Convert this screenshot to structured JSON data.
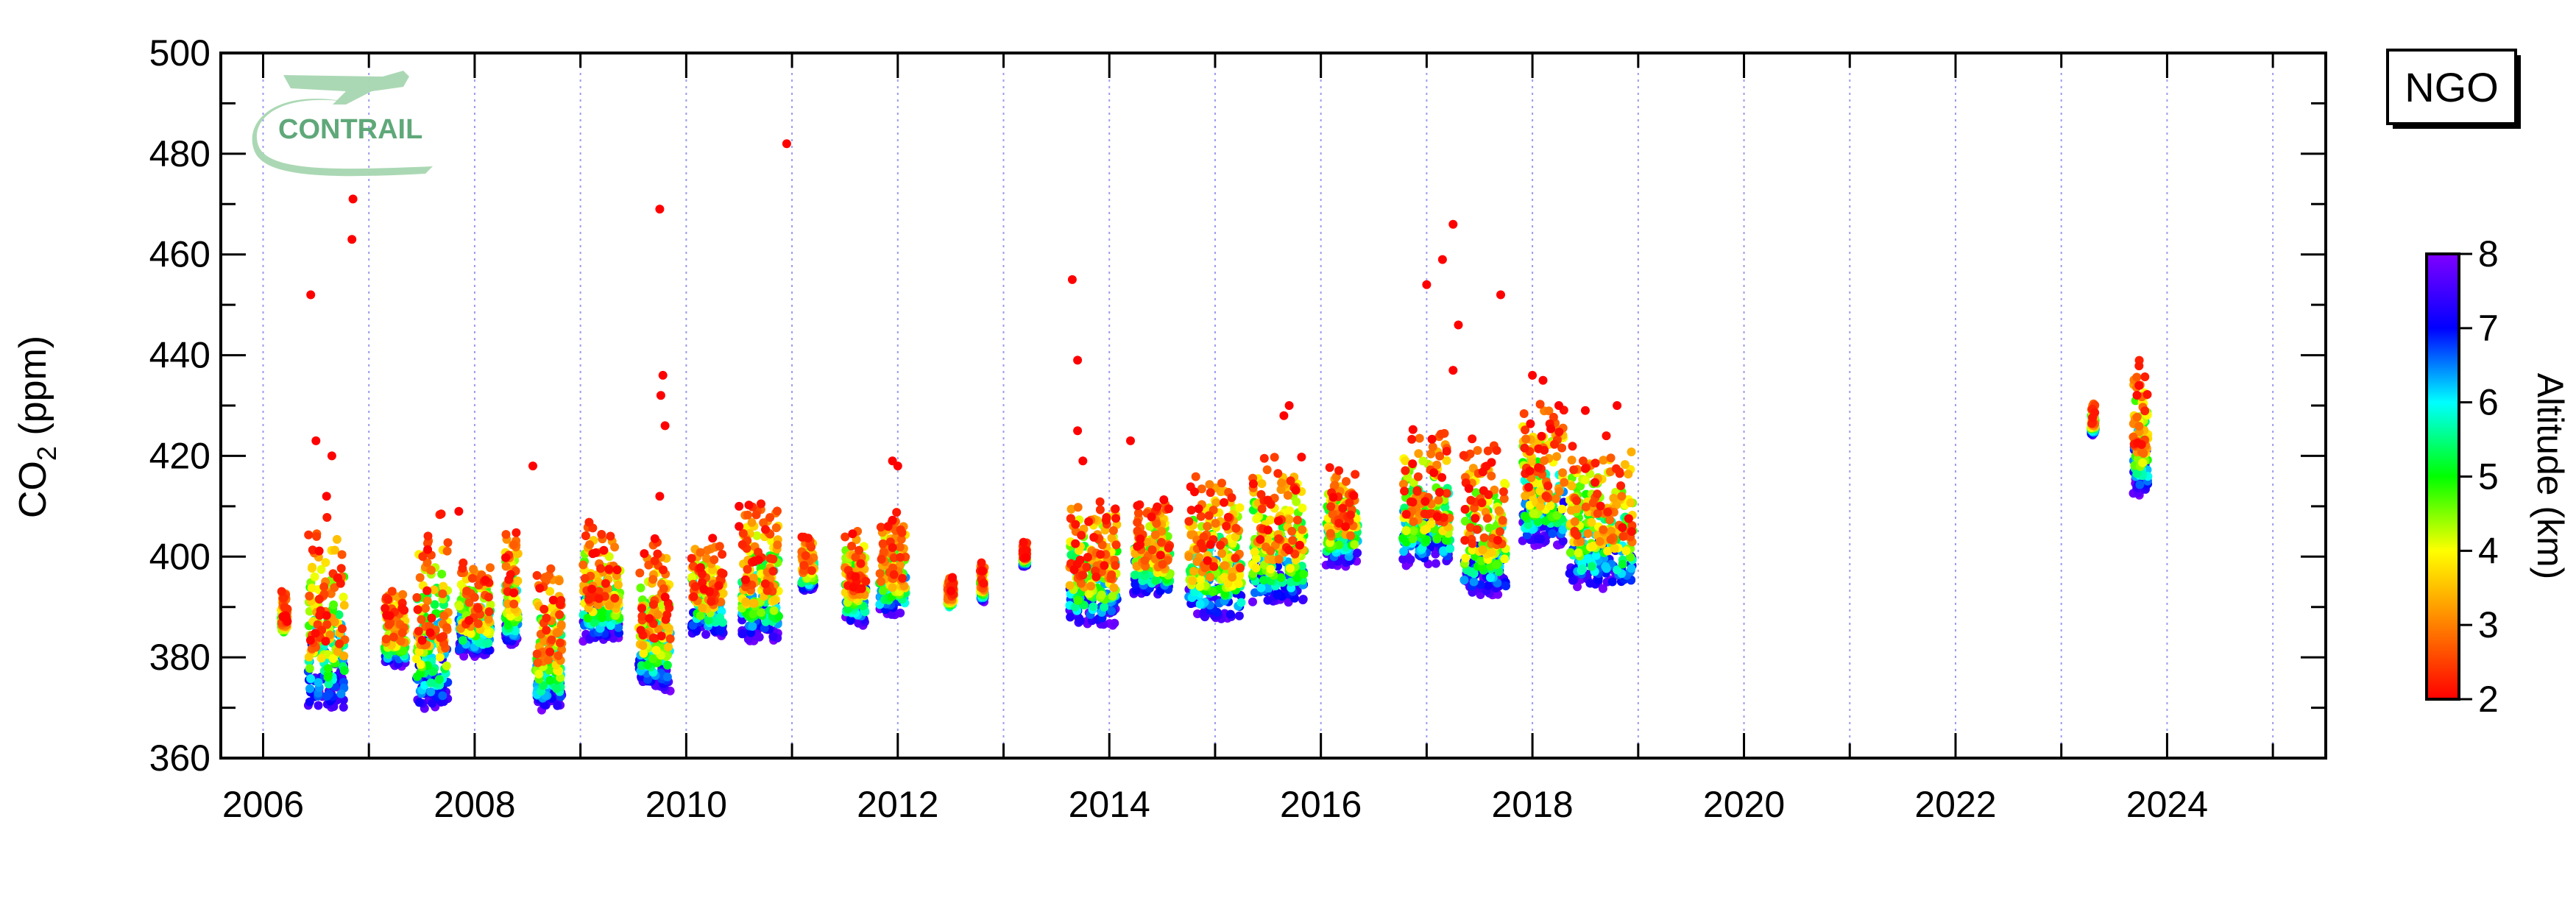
{
  "chart_data": {
    "type": "scatter",
    "title": "",
    "station": "NGO",
    "logo_text": "CONTRAIL",
    "ylabel_main": "CO",
    "ylabel_sub": "2",
    "ylabel_unit": " (ppm)",
    "xlabel": "",
    "xlim": [
      2005.6,
      2025.5
    ],
    "ylim": [
      360,
      500
    ],
    "x_ticks": [
      2006,
      2008,
      2010,
      2012,
      2014,
      2016,
      2018,
      2020,
      2022,
      2024
    ],
    "y_ticks": [
      360,
      380,
      400,
      420,
      440,
      460,
      480,
      500
    ],
    "vertical_gridlines_dotted_every": 1,
    "colorbar": {
      "label": "Altitude (km)",
      "min": 2,
      "max": 8,
      "ticks": [
        2,
        3,
        4,
        5,
        6,
        7,
        8
      ],
      "colors": [
        "#ff0000",
        "#ff8000",
        "#ffff00",
        "#00ff00",
        "#00ffff",
        "#0000ff",
        "#8000ff"
      ]
    },
    "clusters": [
      {
        "x": 2006.2,
        "w": 0.06,
        "low": 383,
        "high": 394,
        "alt_min": 2,
        "alt_max": 5
      },
      {
        "x": 2006.6,
        "w": 0.35,
        "low": 369,
        "high": 410,
        "alt_min": 2,
        "alt_max": 8
      },
      {
        "x": 2007.25,
        "w": 0.2,
        "low": 378,
        "high": 395,
        "alt_min": 2,
        "alt_max": 8
      },
      {
        "x": 2007.6,
        "w": 0.3,
        "low": 369,
        "high": 410,
        "alt_min": 2,
        "alt_max": 8
      },
      {
        "x": 2008.0,
        "w": 0.3,
        "low": 380,
        "high": 400,
        "alt_min": 2,
        "alt_max": 8
      },
      {
        "x": 2008.35,
        "w": 0.12,
        "low": 382,
        "high": 407,
        "alt_min": 2,
        "alt_max": 8
      },
      {
        "x": 2008.7,
        "w": 0.25,
        "low": 369,
        "high": 400,
        "alt_min": 2,
        "alt_max": 8
      },
      {
        "x": 2009.2,
        "w": 0.35,
        "low": 383,
        "high": 408,
        "alt_min": 2,
        "alt_max": 8
      },
      {
        "x": 2009.7,
        "w": 0.3,
        "low": 373,
        "high": 405,
        "alt_min": 2,
        "alt_max": 8
      },
      {
        "x": 2010.2,
        "w": 0.3,
        "low": 384,
        "high": 405,
        "alt_min": 2,
        "alt_max": 8
      },
      {
        "x": 2010.7,
        "w": 0.35,
        "low": 383,
        "high": 412,
        "alt_min": 2,
        "alt_max": 8
      },
      {
        "x": 2011.15,
        "w": 0.12,
        "low": 393,
        "high": 405,
        "alt_min": 2,
        "alt_max": 8
      },
      {
        "x": 2011.6,
        "w": 0.2,
        "low": 386,
        "high": 408,
        "alt_min": 2,
        "alt_max": 8
      },
      {
        "x": 2011.95,
        "w": 0.25,
        "low": 388,
        "high": 410,
        "alt_min": 2,
        "alt_max": 8
      },
      {
        "x": 2012.5,
        "w": 0.06,
        "low": 389,
        "high": 397,
        "alt_min": 2,
        "alt_max": 6
      },
      {
        "x": 2012.8,
        "w": 0.04,
        "low": 391,
        "high": 399,
        "alt_min": 2,
        "alt_max": 8
      },
      {
        "x": 2013.2,
        "w": 0.04,
        "low": 398,
        "high": 403,
        "alt_min": 2,
        "alt_max": 8
      },
      {
        "x": 2013.85,
        "w": 0.45,
        "low": 386,
        "high": 414,
        "alt_min": 2,
        "alt_max": 8
      },
      {
        "x": 2014.4,
        "w": 0.35,
        "low": 392,
        "high": 412,
        "alt_min": 2,
        "alt_max": 8
      },
      {
        "x": 2015.0,
        "w": 0.5,
        "low": 387,
        "high": 418,
        "alt_min": 2,
        "alt_max": 8
      },
      {
        "x": 2015.6,
        "w": 0.5,
        "low": 390,
        "high": 422,
        "alt_min": 2,
        "alt_max": 8
      },
      {
        "x": 2016.2,
        "w": 0.3,
        "low": 398,
        "high": 418,
        "alt_min": 2,
        "alt_max": 8
      },
      {
        "x": 2017.0,
        "w": 0.45,
        "low": 398,
        "high": 426,
        "alt_min": 2,
        "alt_max": 8
      },
      {
        "x": 2017.55,
        "w": 0.4,
        "low": 392,
        "high": 424,
        "alt_min": 2,
        "alt_max": 8
      },
      {
        "x": 2018.1,
        "w": 0.4,
        "low": 402,
        "high": 432,
        "alt_min": 2,
        "alt_max": 8
      },
      {
        "x": 2018.65,
        "w": 0.6,
        "low": 393,
        "high": 426,
        "alt_min": 2,
        "alt_max": 8
      },
      {
        "x": 2023.3,
        "w": 0.04,
        "low": 424,
        "high": 431,
        "alt_min": 2,
        "alt_max": 8
      },
      {
        "x": 2023.75,
        "w": 0.14,
        "low": 412,
        "high": 440,
        "alt_min": 2,
        "alt_max": 8
      }
    ],
    "outliers": [
      [
        2006.45,
        452
      ],
      [
        2006.5,
        423
      ],
      [
        2006.65,
        420
      ],
      [
        2006.6,
        412
      ],
      [
        2006.85,
        471
      ],
      [
        2006.84,
        463
      ],
      [
        2007.85,
        409
      ],
      [
        2008.55,
        418
      ],
      [
        2009.75,
        469
      ],
      [
        2009.78,
        436
      ],
      [
        2009.76,
        432
      ],
      [
        2009.8,
        426
      ],
      [
        2009.75,
        412
      ],
      [
        2010.5,
        410
      ],
      [
        2010.5,
        406
      ],
      [
        2010.95,
        482
      ],
      [
        2011.95,
        419
      ],
      [
        2012.0,
        418
      ],
      [
        2013.65,
        455
      ],
      [
        2013.7,
        439
      ],
      [
        2013.7,
        425
      ],
      [
        2013.75,
        419
      ],
      [
        2014.2,
        423
      ],
      [
        2015.7,
        430
      ],
      [
        2015.65,
        428
      ],
      [
        2017.0,
        454
      ],
      [
        2017.15,
        459
      ],
      [
        2017.25,
        466
      ],
      [
        2017.3,
        446
      ],
      [
        2017.7,
        452
      ],
      [
        2017.25,
        437
      ],
      [
        2018.0,
        436
      ],
      [
        2018.1,
        435
      ],
      [
        2018.25,
        430
      ],
      [
        2018.5,
        429
      ],
      [
        2018.8,
        430
      ]
    ]
  }
}
